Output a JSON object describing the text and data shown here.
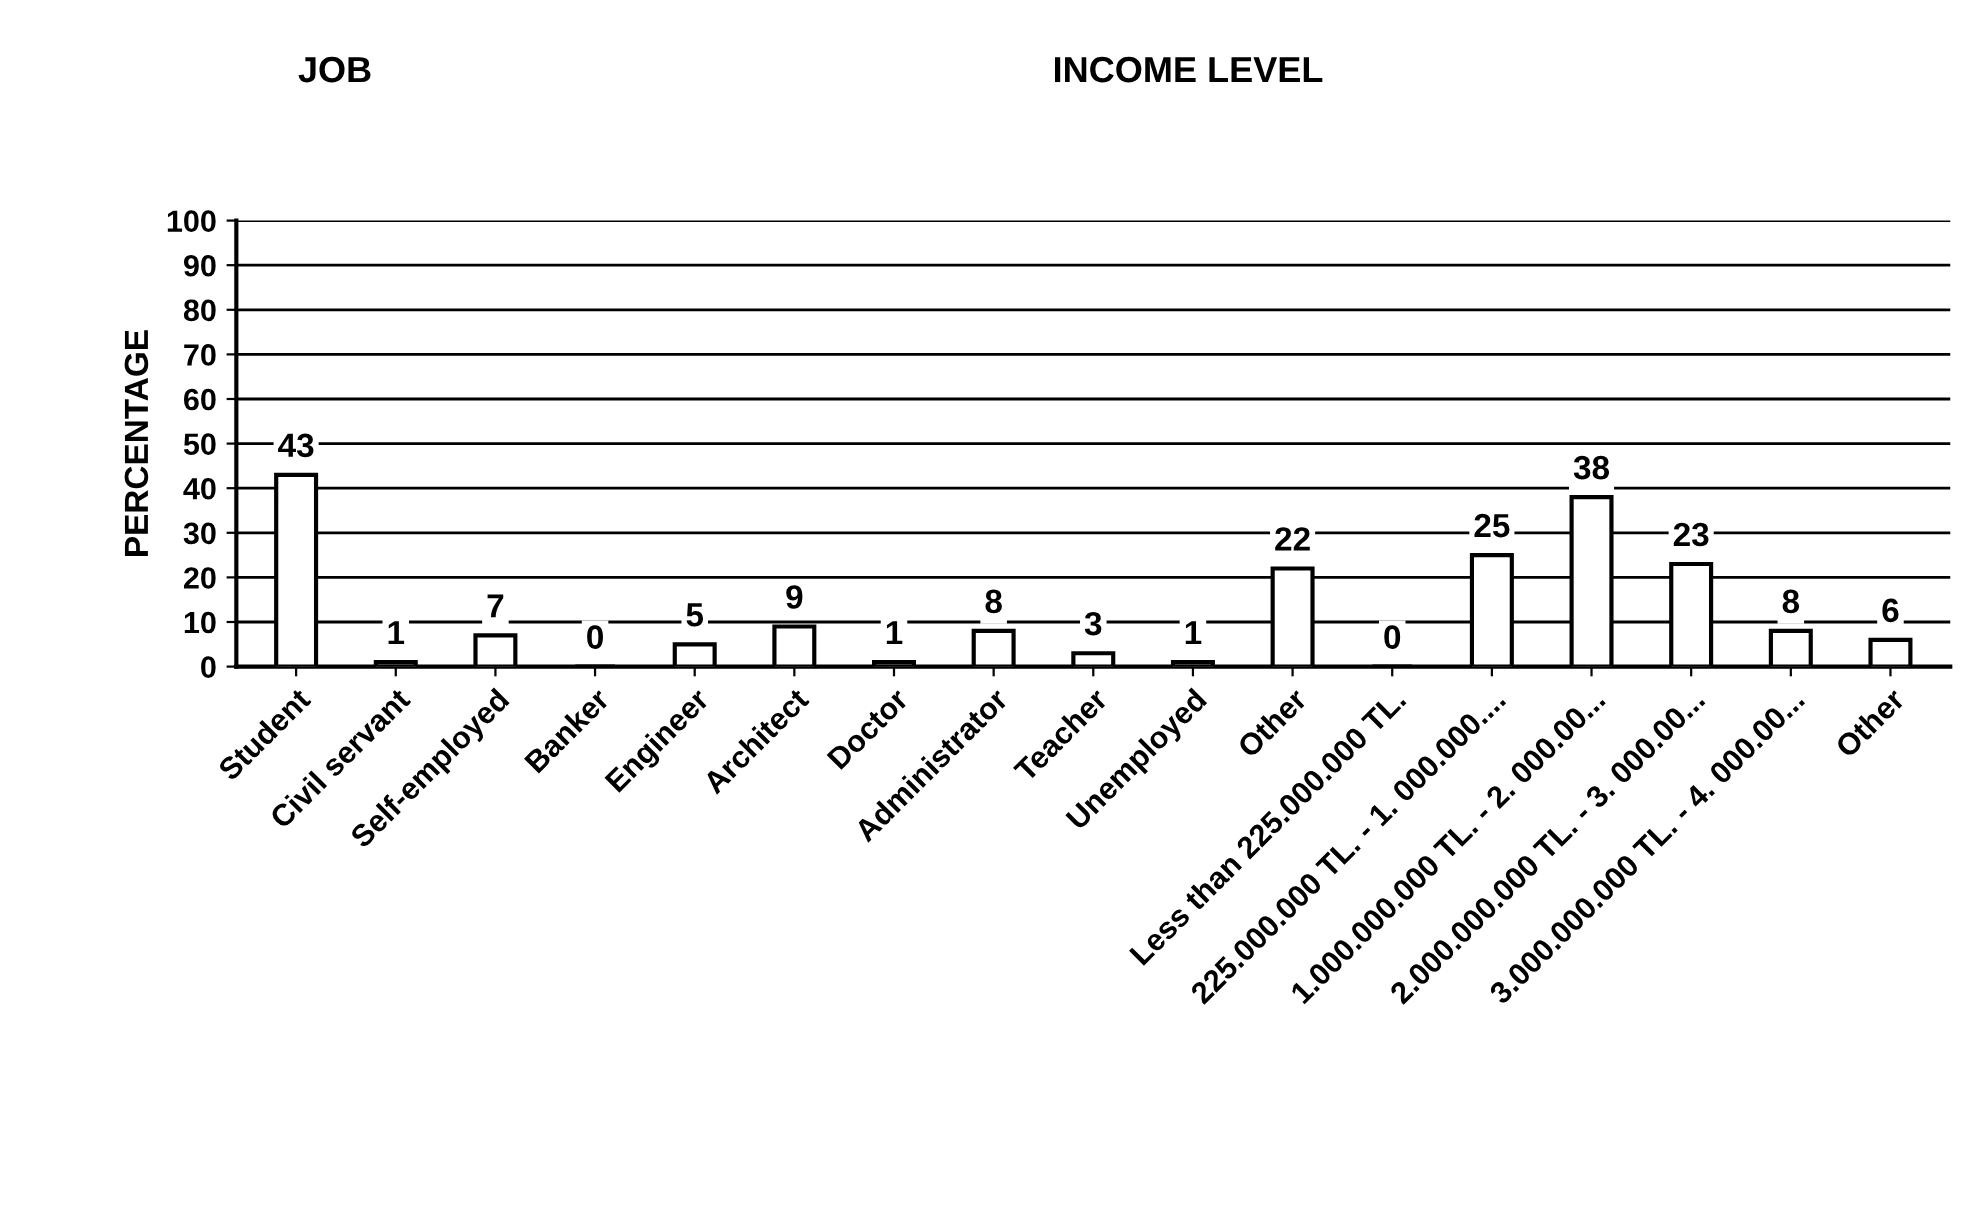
{
  "chart_data": {
    "type": "bar",
    "annotations": [
      "JOB",
      "INCOME LEVEL"
    ],
    "ylabel": "PERCENTAGE",
    "categories": [
      "Student",
      "Civil servant",
      "Self-employed",
      "Banker",
      "Engineer",
      "Architect",
      "Doctor",
      "Administrator",
      "Teacher",
      "Unemployed",
      "Other",
      "Less than 225.000.000 TL.",
      "225.000.000 TL. - 1. 000.000....",
      "1.000.000.000 TL. - 2. 000.00...",
      "2.000.000.000 TL. - 3. 000.00...",
      "3.000.000.000 TL. - 4. 000.00...",
      "Other"
    ],
    "values": [
      43,
      1,
      7,
      0,
      5,
      9,
      1,
      8,
      3,
      1,
      22,
      0,
      25,
      38,
      23,
      8,
      6
    ],
    "color": "#ffffff",
    "ylim": [
      0,
      100
    ],
    "yticks": [
      0,
      10,
      20,
      30,
      40,
      50,
      60,
      70,
      80,
      90,
      100
    ],
    "grid": "y",
    "data_labels": true
  }
}
